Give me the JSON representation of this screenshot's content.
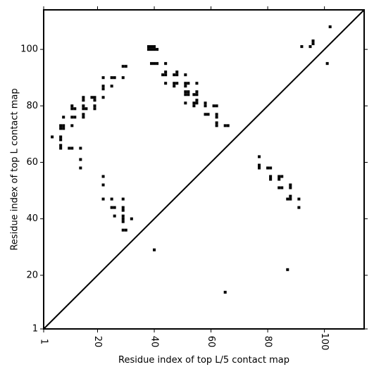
{
  "chart_data": {
    "type": "heatmap",
    "title": "",
    "xlabel": "Residue index of top L/5 contact map",
    "ylabel": "Residue index of top L contact map",
    "xlim": [
      1,
      114
    ],
    "ylim": [
      1,
      114
    ],
    "x_ticks": [
      1,
      20,
      40,
      60,
      80,
      100
    ],
    "y_ticks": [
      1,
      20,
      40,
      60,
      80,
      100
    ],
    "grid": false,
    "diagonal": true,
    "cell_color": "#000000",
    "frame_color": "#000000",
    "background": "#ffffff",
    "upper_triangle_points": [
      [
        4,
        69
      ],
      [
        7,
        72
      ],
      [
        7,
        73
      ],
      [
        8,
        72
      ],
      [
        8,
        73
      ],
      [
        8,
        76
      ],
      [
        7,
        69
      ],
      [
        7,
        68
      ],
      [
        7,
        66
      ],
      [
        7,
        65
      ],
      [
        10,
        65
      ],
      [
        11,
        65
      ],
      [
        11,
        73
      ],
      [
        11,
        76
      ],
      [
        12,
        76
      ],
      [
        11,
        79
      ],
      [
        12,
        79
      ],
      [
        11,
        80
      ],
      [
        14,
        65
      ],
      [
        14,
        61
      ],
      [
        14,
        58
      ],
      [
        15,
        76
      ],
      [
        15,
        77
      ],
      [
        15,
        79
      ],
      [
        16,
        79
      ],
      [
        15,
        80
      ],
      [
        15,
        82
      ],
      [
        15,
        83
      ],
      [
        18,
        83
      ],
      [
        19,
        83
      ],
      [
        19,
        82
      ],
      [
        19,
        80
      ],
      [
        19,
        79
      ],
      [
        22,
        83
      ],
      [
        22,
        86
      ],
      [
        22,
        87
      ],
      [
        22,
        90
      ],
      [
        25,
        90
      ],
      [
        26,
        90
      ],
      [
        25,
        87
      ],
      [
        29,
        90
      ],
      [
        29,
        94
      ],
      [
        30,
        94
      ],
      [
        22,
        55
      ],
      [
        22,
        52
      ],
      [
        22,
        47
      ],
      [
        25,
        47
      ],
      [
        25,
        44
      ],
      [
        26,
        44
      ],
      [
        26,
        41
      ],
      [
        29,
        47
      ],
      [
        29,
        44
      ],
      [
        29,
        43
      ],
      [
        29,
        41
      ],
      [
        29,
        40
      ],
      [
        29,
        39
      ],
      [
        29,
        36
      ],
      [
        30,
        36
      ],
      [
        32,
        40
      ],
      [
        38,
        100
      ],
      [
        38,
        101
      ],
      [
        39,
        100
      ],
      [
        39,
        101
      ],
      [
        40,
        100
      ],
      [
        40,
        101
      ],
      [
        41,
        100
      ],
      [
        39,
        95
      ],
      [
        40,
        95
      ],
      [
        41,
        95
      ],
      [
        43,
        91
      ],
      [
        44,
        91
      ],
      [
        44,
        92
      ],
      [
        44,
        95
      ],
      [
        44,
        88
      ],
      [
        47,
        87
      ],
      [
        47,
        88
      ],
      [
        48,
        88
      ],
      [
        47,
        91
      ],
      [
        48,
        91
      ],
      [
        48,
        92
      ],
      [
        51,
        91
      ],
      [
        51,
        88
      ],
      [
        52,
        88
      ],
      [
        51,
        87
      ],
      [
        51,
        85
      ],
      [
        52,
        85
      ],
      [
        51,
        84
      ],
      [
        52,
        84
      ],
      [
        51,
        81
      ],
      [
        54,
        80
      ],
      [
        54,
        81
      ],
      [
        55,
        81
      ],
      [
        55,
        82
      ],
      [
        54,
        84
      ],
      [
        55,
        84
      ],
      [
        55,
        85
      ],
      [
        55,
        88
      ],
      [
        58,
        80
      ],
      [
        58,
        81
      ],
      [
        58,
        77
      ],
      [
        59,
        77
      ],
      [
        61,
        80
      ],
      [
        62,
        80
      ],
      [
        62,
        77
      ],
      [
        62,
        76
      ],
      [
        62,
        74
      ],
      [
        62,
        73
      ],
      [
        65,
        73
      ],
      [
        66,
        73
      ],
      [
        40,
        29
      ]
    ],
    "lower_triangle_points": [
      [
        65,
        14
      ],
      [
        77,
        62
      ],
      [
        77,
        59
      ],
      [
        77,
        58
      ],
      [
        80,
        58
      ],
      [
        81,
        58
      ],
      [
        81,
        55
      ],
      [
        81,
        54
      ],
      [
        84,
        55
      ],
      [
        85,
        55
      ],
      [
        84,
        54
      ],
      [
        84,
        51
      ],
      [
        85,
        51
      ],
      [
        87,
        47
      ],
      [
        88,
        47
      ],
      [
        88,
        48
      ],
      [
        88,
        51
      ],
      [
        88,
        52
      ],
      [
        87,
        22
      ],
      [
        91,
        47
      ],
      [
        91,
        44
      ],
      [
        92,
        101
      ],
      [
        95,
        101
      ],
      [
        96,
        102
      ],
      [
        96,
        103
      ],
      [
        101,
        95
      ],
      [
        102,
        108
      ]
    ]
  }
}
